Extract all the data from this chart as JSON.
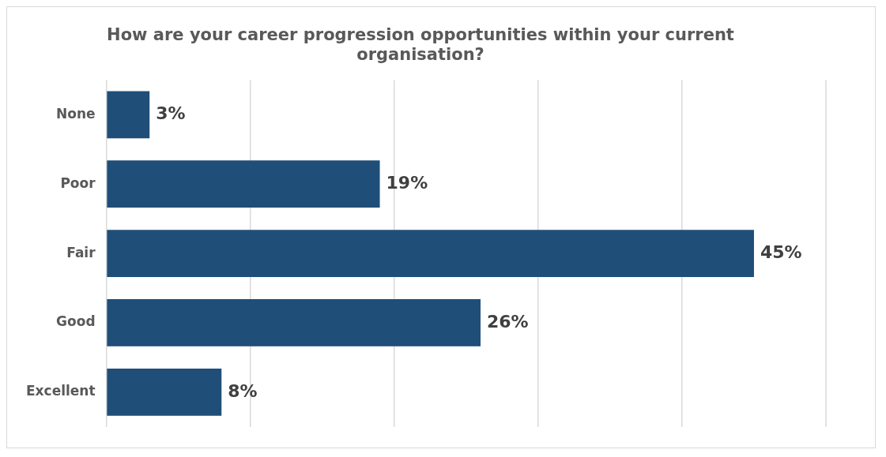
{
  "chart_data": {
    "type": "bar",
    "orientation": "horizontal",
    "title": "How are your career progression opportunities within your current organisation?",
    "categories": [
      "None",
      "Poor",
      "Fair",
      "Good",
      "Excellent"
    ],
    "values": [
      3,
      19,
      45,
      26,
      8
    ],
    "value_labels": [
      "3%",
      "19%",
      "45%",
      "26%",
      "8%"
    ],
    "color": "#1f4e79",
    "xlim": [
      0,
      50
    ],
    "xticks": [
      {
        "value": 0,
        "label": null
      },
      {
        "value": 10,
        "label": null
      },
      {
        "value": 20,
        "label": null
      },
      {
        "value": 30,
        "label": null
      },
      {
        "value": 40,
        "label": null
      }
    ],
    "tick_labels": "y",
    "grid": "x",
    "legend": false
  }
}
